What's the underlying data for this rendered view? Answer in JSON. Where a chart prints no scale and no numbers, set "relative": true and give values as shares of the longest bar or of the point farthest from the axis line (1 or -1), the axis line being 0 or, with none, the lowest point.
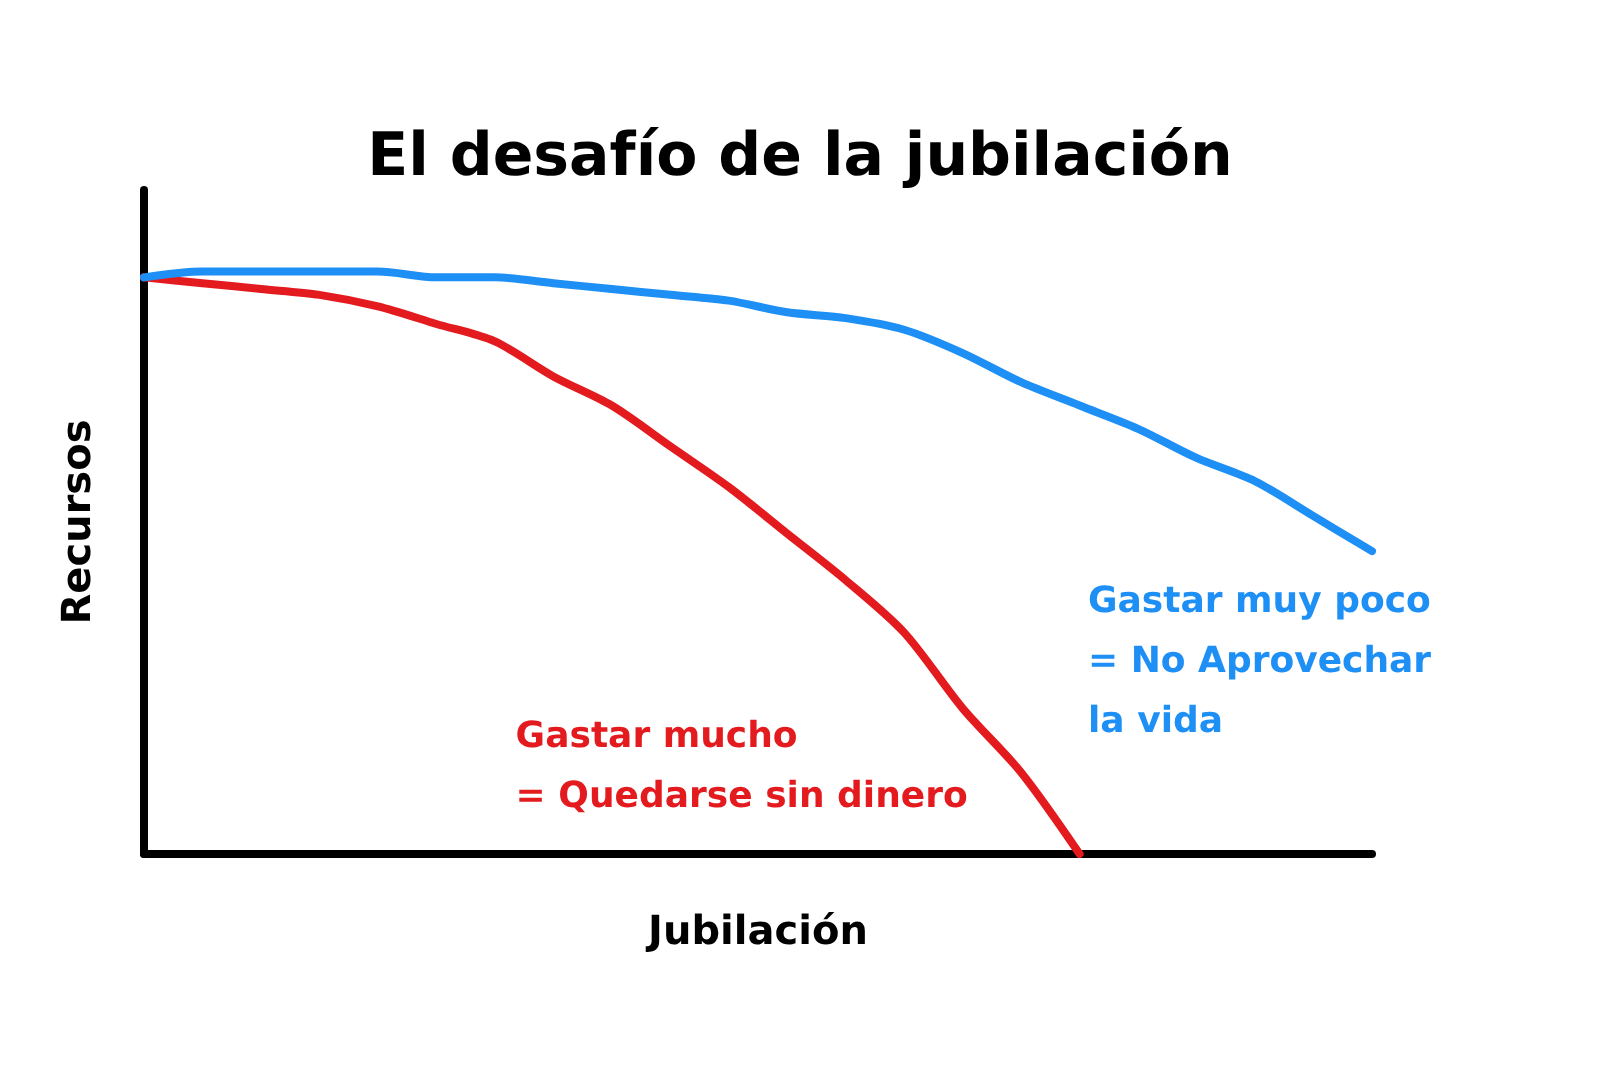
{
  "chart_data": {
    "type": "line",
    "title": "El desafío de la jubilación",
    "xlabel": "Jubilación",
    "ylabel": "Recursos",
    "relative": true,
    "marker": "none",
    "line_style": "solid",
    "categories": [
      null,
      null,
      null,
      null,
      null,
      null,
      null,
      null,
      null,
      null,
      null,
      null,
      null,
      null,
      null,
      null,
      null,
      null,
      null,
      null,
      null,
      null
    ],
    "series": [
      {
        "name": "Gastar mucho\n= Quedarse sin dinero",
        "color": "#e31b1f",
        "values": [
          0.99,
          0.98,
          0.97,
          0.96,
          0.94,
          0.91,
          0.88,
          0.82,
          0.77,
          0.7,
          0.63,
          0.55,
          0.47,
          0.38,
          0.25,
          0.14,
          0,
          null,
          null,
          null,
          null,
          null
        ]
      },
      {
        "name": "Gastar muy poco\n= No Aprovechar\nla vida",
        "color": "#1e8ff5",
        "values": [
          0.99,
          1.0,
          1.0,
          1.0,
          1.0,
          0.99,
          0.99,
          0.98,
          0.97,
          0.96,
          0.95,
          0.93,
          0.92,
          0.9,
          0.86,
          0.81,
          0.77,
          0.73,
          0.68,
          0.64,
          0.58,
          0.52
        ]
      }
    ]
  }
}
